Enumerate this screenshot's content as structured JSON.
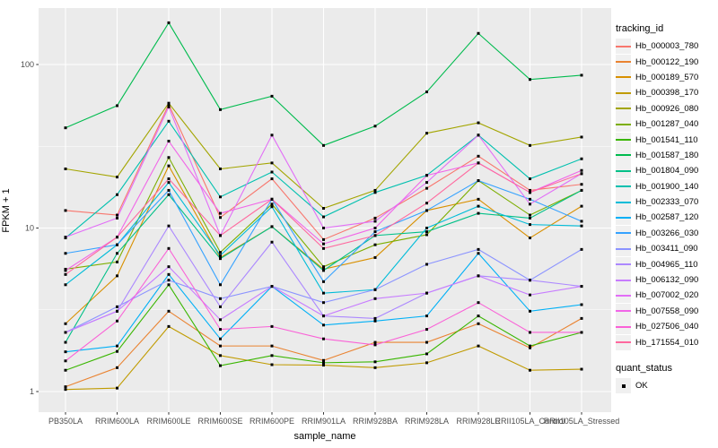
{
  "chart_data": {
    "type": "line",
    "title": "",
    "xlabel": "sample_name",
    "ylabel": "FPKM + 1",
    "y_scale": "log10",
    "y_ticks": [
      1,
      10,
      100
    ],
    "y_minor_ticks": [
      3.1623,
      31.623
    ],
    "ylim": [
      0.74,
      224
    ],
    "grid": true,
    "panel_bg": "#EBEBEB",
    "grid_color": "#FFFFFF",
    "tick_color": "#333333",
    "tick_label_color": "#4D4D4D",
    "point_marker": "black-square",
    "legend_position": "right",
    "categories": [
      "PB350LA",
      "RRIM600LA",
      "RRIM600LE",
      "RRIM600SE",
      "RRIM600PE",
      "RRIM901LA",
      "RRIM928BA",
      "RRIM928LA",
      "RRIM928LE",
      "RRII105LA_Control",
      "RRII105LA_Stressed"
    ],
    "series": [
      {
        "name": "Hb_000003_780",
        "color": "#F8766D",
        "values": [
          12.8,
          12.0,
          57,
          11.6,
          20,
          8.5,
          11.5,
          17.5,
          27.5,
          17,
          18.5
        ]
      },
      {
        "name": "Hb_000122_190",
        "color": "#EA8331",
        "values": [
          1.07,
          1.4,
          3.1,
          1.9,
          1.9,
          1.55,
          2.0,
          2.0,
          2.6,
          1.85,
          2.8
        ]
      },
      {
        "name": "Hb_000189_570",
        "color": "#D89000",
        "values": [
          2.6,
          5.1,
          24,
          6.6,
          10.2,
          5.6,
          6.6,
          12.8,
          15,
          8.7,
          13.6
        ]
      },
      {
        "name": "Hb_000398_170",
        "color": "#C09B00",
        "values": [
          1.03,
          1.05,
          2.5,
          1.66,
          1.46,
          1.45,
          1.4,
          1.5,
          1.9,
          1.35,
          1.37
        ]
      },
      {
        "name": "Hb_000926_080",
        "color": "#A3A500",
        "values": [
          23,
          20.5,
          58,
          23,
          25,
          13.2,
          17,
          38,
          44,
          32,
          36
        ]
      },
      {
        "name": "Hb_001287_040",
        "color": "#7CAE00",
        "values": [
          5.6,
          6.2,
          27,
          7.1,
          14,
          5.8,
          7.9,
          9.1,
          19.5,
          12,
          17
        ]
      },
      {
        "name": "Hb_001541_110",
        "color": "#39B600",
        "values": [
          1.35,
          1.76,
          4.5,
          1.44,
          1.66,
          1.5,
          1.52,
          1.7,
          2.9,
          1.9,
          2.3
        ]
      },
      {
        "name": "Hb_001587_180",
        "color": "#00BB4E",
        "values": [
          41,
          56,
          180,
          53,
          64,
          32,
          42,
          68,
          155,
          81,
          86
        ]
      },
      {
        "name": "Hb_001804_090",
        "color": "#00C087",
        "values": [
          2.0,
          7.0,
          16,
          6.5,
          10.2,
          5.5,
          9.0,
          9.5,
          12.3,
          11.5,
          17
        ]
      },
      {
        "name": "Hb_001900_140",
        "color": "#00C0AF",
        "values": [
          8.7,
          16,
          45,
          15.5,
          22,
          11.7,
          16.5,
          21,
          37,
          20,
          26.5
        ]
      },
      {
        "name": "Hb_002333_070",
        "color": "#00BCD8",
        "values": [
          4.5,
          7.9,
          19,
          6.8,
          13.5,
          4.0,
          4.2,
          10,
          13.6,
          10.5,
          10.3
        ]
      },
      {
        "name": "Hb_002587_120",
        "color": "#00B0F6",
        "values": [
          1.75,
          1.9,
          5.2,
          2.1,
          4.4,
          2.55,
          2.7,
          2.9,
          7.0,
          3.1,
          3.4
        ]
      },
      {
        "name": "Hb_003266_030",
        "color": "#35A2FF",
        "values": [
          7.0,
          7.9,
          17,
          4.5,
          15,
          4.7,
          9.5,
          12.8,
          19.5,
          15,
          11
        ]
      },
      {
        "name": "Hb_003411_090",
        "color": "#8B93FF",
        "values": [
          2.3,
          3.3,
          4.8,
          3.7,
          4.4,
          3.5,
          4.2,
          6.0,
          7.4,
          4.8,
          7.4
        ]
      },
      {
        "name": "Hb_004965_110",
        "color": "#AC88FF",
        "values": [
          2.3,
          3.1,
          10.3,
          3.3,
          8.2,
          2.9,
          2.8,
          4.0,
          5.1,
          4.8,
          4.4
        ]
      },
      {
        "name": "Hb_006132_090",
        "color": "#C77CFF",
        "values": [
          2.3,
          3.1,
          5.8,
          2.75,
          4.4,
          2.9,
          3.7,
          4.0,
          5.1,
          3.9,
          4.4
        ]
      },
      {
        "name": "Hb_007002_020",
        "color": "#E26EF7",
        "values": [
          8.8,
          11.5,
          55,
          9.0,
          37,
          10,
          11,
          19,
          37,
          14,
          21.5
        ]
      },
      {
        "name": "Hb_007558_090",
        "color": "#F166E8",
        "values": [
          5.5,
          8.8,
          34,
          12.3,
          15,
          8.0,
          10,
          21,
          25,
          16.5,
          22.5
        ]
      },
      {
        "name": "Hb_027506_040",
        "color": "#FA61D7",
        "values": [
          1.54,
          2.7,
          7.5,
          2.4,
          2.5,
          2.1,
          1.93,
          2.4,
          3.5,
          2.3,
          2.3
        ]
      },
      {
        "name": "Hb_171554_010",
        "color": "#FF689E",
        "values": [
          5.2,
          8.8,
          20,
          9.0,
          15,
          7.5,
          9.0,
          14.2,
          25,
          16.5,
          21.5
        ]
      }
    ],
    "legend": {
      "color_title": "tracking_id",
      "shape_title": "quant_status",
      "shape_entries": [
        {
          "label": "OK",
          "marker": "black-square"
        }
      ]
    }
  }
}
